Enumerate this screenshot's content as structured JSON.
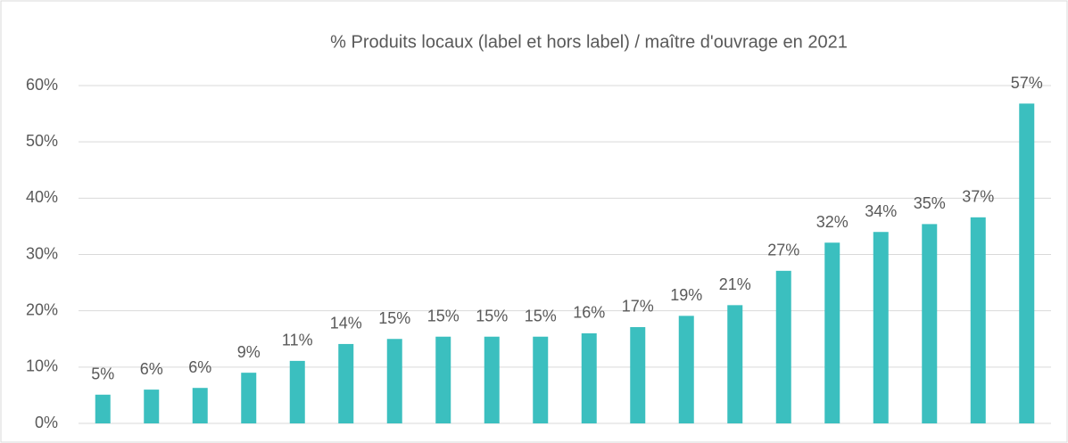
{
  "chart_data": {
    "type": "bar",
    "title": "% Produits locaux (label et hors label) / maître d'ouvrage en 2021",
    "categories": [
      null,
      null,
      null,
      null,
      null,
      null,
      null,
      null,
      null,
      null,
      null,
      null,
      null,
      null,
      null,
      null,
      null,
      null,
      null,
      null
    ],
    "values": [
      5.1,
      6.0,
      6.3,
      9.0,
      11.1,
      14.1,
      15.0,
      15.4,
      15.4,
      15.4,
      16.0,
      17.1,
      19.1,
      21.0,
      27.1,
      32.1,
      34.0,
      35.4,
      36.6,
      56.8
    ],
    "value_labels": [
      "5%",
      "6%",
      "6%",
      "9%",
      "11%",
      "14%",
      "15%",
      "15%",
      "15%",
      "15%",
      "16%",
      "17%",
      "19%",
      "21%",
      "27%",
      "32%",
      "34%",
      "35%",
      "37%",
      "57%"
    ],
    "color": "#3bbfbf",
    "ylim": [
      0,
      60
    ],
    "yticks": [
      {
        "value": 0,
        "label": "0%"
      },
      {
        "value": 10,
        "label": "10%"
      },
      {
        "value": 20,
        "label": "20%"
      },
      {
        "value": 30,
        "label": "30%"
      },
      {
        "value": 40,
        "label": "40%"
      },
      {
        "value": 50,
        "label": "50%"
      },
      {
        "value": 60,
        "label": "60%"
      }
    ],
    "grid": true
  }
}
